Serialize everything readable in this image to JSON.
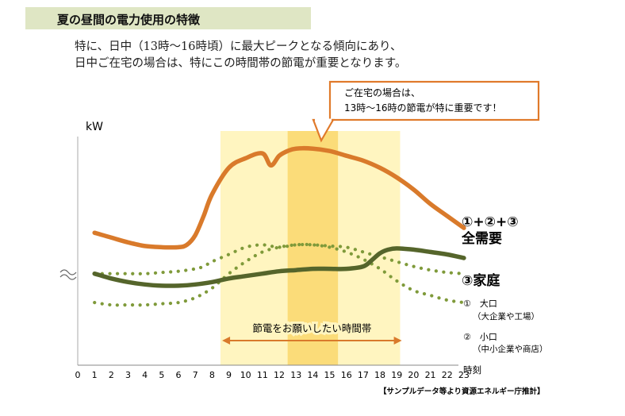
{
  "header": {
    "title": "夏の昼間の電力使用の特徴"
  },
  "description": {
    "line1": "特に、日中（13時〜16時頃）に最大ピークとなる傾向にあり、",
    "line2": "日中ご在宅の場合は、特にこの時間帯の節電が重要となります。"
  },
  "callout": {
    "line1": "ご在宅の場合は、",
    "line2": "13時〜16時の節電が特に重要です！"
  },
  "colors": {
    "total": "#d97a2b",
    "home": "#55652b",
    "dotted": "#7f9a3a",
    "highlight_light": "#fff5c0",
    "highlight_dark": "#fbdc79",
    "callout_border": "#e07a2b",
    "header_bg": "#dfe6c4"
  },
  "chart_data": {
    "type": "line",
    "ylabel": "kW",
    "xlabel": "時刻",
    "x": [
      0,
      1,
      2,
      3,
      4,
      5,
      6,
      7,
      8,
      9,
      10,
      11,
      12,
      13,
      14,
      15,
      16,
      17,
      18,
      19,
      20,
      21,
      22,
      23
    ],
    "x_tick_labels": [
      "0",
      "1",
      "2",
      "3",
      "4",
      "5",
      "6",
      "7",
      "8",
      "9",
      "10",
      "11",
      "12",
      "13",
      "14",
      "15",
      "16",
      "17",
      "18",
      "19",
      "20",
      "21",
      "22",
      "23"
    ],
    "y_axis_break": true,
    "y_tick_labels": false,
    "grid": false,
    "highlight_ranges": [
      {
        "from": 8.5,
        "to": 19.2,
        "style": "light"
      },
      {
        "from": 12.5,
        "to": 15.5,
        "style": "dark"
      }
    ],
    "series": [
      {
        "name": "①+②+③ 全需要",
        "label_line1": "①+②+③",
        "label_line2": "全需要",
        "style": "solid",
        "x": [
          1,
          2,
          3,
          4,
          5,
          6,
          6.5,
          7,
          7.5,
          8,
          9,
          10,
          11,
          11.5,
          12,
          12.5,
          13,
          14,
          15,
          16,
          17,
          18,
          19,
          20,
          21,
          22,
          23
        ],
        "values": [
          60,
          58,
          56,
          54.5,
          54,
          54,
          55,
          59,
          67,
          76,
          87,
          91,
          93,
          88,
          92,
          94,
          95,
          95,
          94,
          92,
          90,
          87,
          83,
          78,
          72,
          67,
          62
        ]
      },
      {
        "name": "③家庭",
        "label_line1": "③家庭",
        "style": "solid",
        "x": [
          1,
          2,
          3,
          4,
          5,
          6,
          7,
          8,
          9,
          10,
          11,
          12,
          13,
          14,
          15,
          16,
          17,
          17.5,
          18,
          18.5,
          19,
          20,
          21,
          22,
          23
        ],
        "values": [
          43,
          41,
          39.5,
          38.5,
          38,
          38,
          38.5,
          39.5,
          41,
          42,
          43,
          44,
          44.5,
          45,
          45,
          45,
          46,
          48.5,
          51.5,
          53,
          53.5,
          53,
          52,
          51,
          49.5
        ]
      },
      {
        "name": "① 大口（大企業や工場）",
        "label_line1": "①　大口",
        "label_line2": "（大企業や工場）",
        "style": "dotted",
        "x": [
          1,
          2,
          3,
          4,
          5,
          6,
          7,
          7.5,
          8,
          9,
          10,
          11,
          12,
          13,
          14,
          15,
          16,
          17,
          18,
          19,
          20,
          21,
          22,
          23
        ],
        "values": [
          43,
          43,
          43,
          43,
          43.5,
          44,
          45,
          46,
          48,
          51,
          54,
          55,
          54,
          55,
          55,
          54.5,
          54,
          52,
          50,
          48,
          46,
          44.5,
          43.5,
          43
        ]
      },
      {
        "name": "② 小口（中小企業や商店）",
        "label_line1": "②　小口",
        "label_line2": "（中小企業や商店）",
        "style": "dotted",
        "x": [
          1,
          2,
          3,
          4,
          5,
          6,
          7,
          8,
          9,
          10,
          11,
          12,
          13,
          14,
          15,
          16,
          17,
          18,
          19,
          20,
          21,
          22,
          23
        ],
        "values": [
          31,
          30,
          30,
          30,
          30.5,
          31,
          33,
          37,
          43,
          48,
          52,
          54,
          55,
          55,
          54,
          52,
          49,
          45,
          40,
          36,
          34,
          32,
          31
        ]
      }
    ],
    "annotations": {
      "bracket_label": "節電をお願いしたい時間帯",
      "bracket_from": 8.6,
      "bracket_to": 19.3
    }
  },
  "source_note": "【サンプルデータ等より資源エネルギー庁推計】"
}
